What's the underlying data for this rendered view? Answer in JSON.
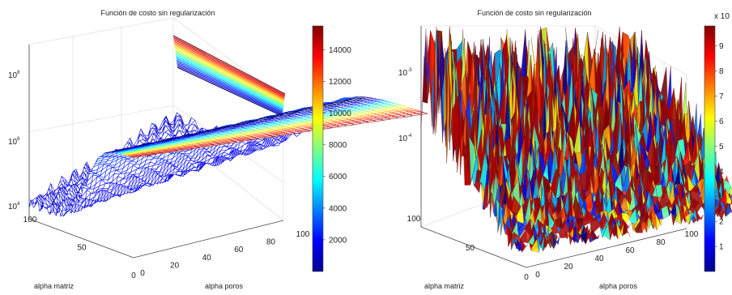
{
  "chart_data": [
    {
      "type": "surface",
      "title": "Función de costo sin regularización",
      "xlabel": "alpha poros",
      "ylabel": "alpha matriz",
      "zlabel": "",
      "x_ticks": [
        "0",
        "20",
        "40",
        "60",
        "80",
        "100"
      ],
      "y_ticks": [
        "0",
        "50",
        "100"
      ],
      "z_ticks": [
        "10^4",
        "10^6",
        "10^8"
      ],
      "z_scale": "log",
      "colormap": "jet",
      "colorbar_ticks": [
        "2000",
        "4000",
        "6000",
        "8000",
        "10000",
        "12000",
        "14000"
      ],
      "colorbar_range": [
        0,
        15500
      ],
      "colorbar_position": "right",
      "grid": true
    },
    {
      "type": "surface",
      "title": "Función de costo sin regularización",
      "xlabel": "alpha poros",
      "ylabel": "alpha matriz",
      "zlabel": "",
      "x_ticks": [
        "0",
        "20",
        "40",
        "60",
        "80",
        "100"
      ],
      "y_ticks": [
        "0",
        "50",
        "100"
      ],
      "z_ticks": [
        "10^-4",
        "10^-3"
      ],
      "z_scale": "log",
      "colormap": "jet",
      "colorbar_ticks": [
        "1",
        "2",
        "3",
        "4",
        "5",
        "6",
        "7",
        "8",
        "9"
      ],
      "colorbar_range": [
        0,
        9.8
      ],
      "colorbar_multiplier": "x 10",
      "colorbar_position": "right",
      "grid": true
    }
  ]
}
